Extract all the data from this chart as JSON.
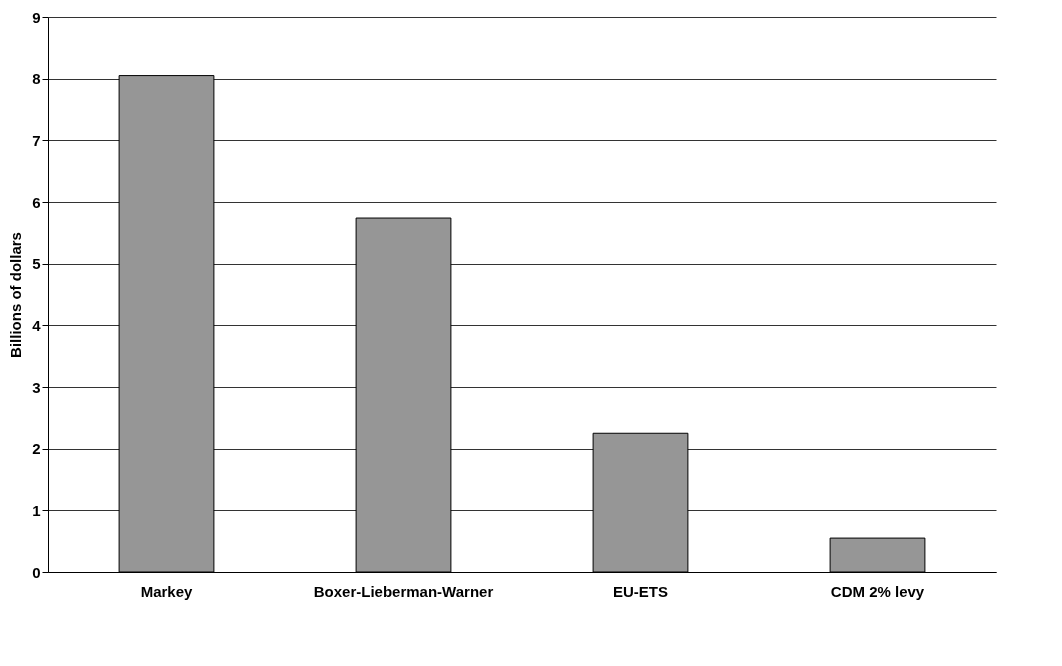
{
  "chart_data": {
    "type": "bar",
    "ylabel": "Billions of dollars",
    "categories": [
      "Markey",
      "Boxer-Lieberman-Warner",
      "EU-ETS",
      "CDM 2% levy"
    ],
    "values": [
      8.05,
      5.74,
      2.25,
      0.55
    ],
    "color": "#969696",
    "ylim": [
      0,
      9
    ],
    "yticks": [
      0,
      1,
      2,
      3,
      4,
      5,
      6,
      7,
      8,
      9
    ],
    "grid": "y"
  }
}
